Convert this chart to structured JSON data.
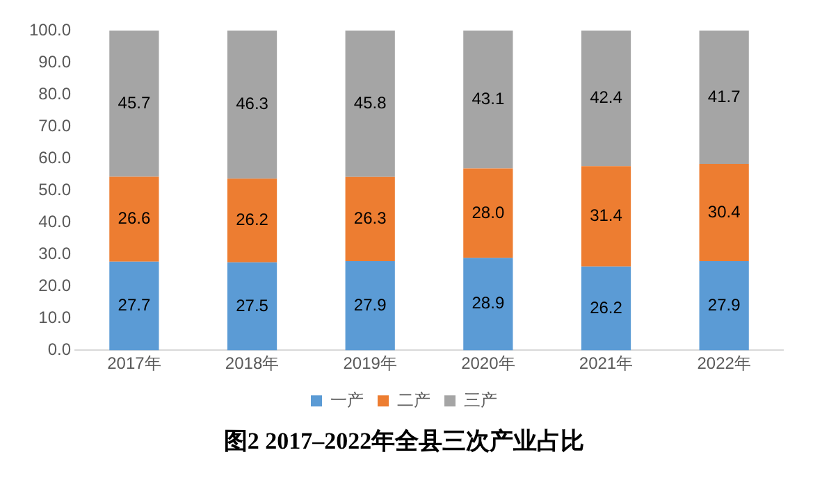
{
  "chart_data": {
    "type": "bar",
    "title": "图2 2017–2022年全县三次产业占比",
    "categories": [
      "2017年",
      "2018年",
      "2019年",
      "2020年",
      "2021年",
      "2022年"
    ],
    "stacked": true,
    "legend": "bottom",
    "grid": false,
    "series": [
      {
        "name": "一产",
        "color": "#5b9bd5",
        "values": [
          27.7,
          27.5,
          27.9,
          28.9,
          26.2,
          27.9
        ],
        "value_labels": [
          "27.7",
          "27.5",
          "27.9",
          "28.9",
          "26.2",
          "27.9"
        ]
      },
      {
        "name": "二产",
        "color": "#ed7d31",
        "values": [
          26.6,
          26.2,
          26.3,
          28.0,
          31.4,
          30.4
        ],
        "value_labels": [
          "26.6",
          "26.2",
          "26.3",
          "28.0",
          "31.4",
          "30.4"
        ]
      },
      {
        "name": "三产",
        "color": "#a5a5a5",
        "values": [
          45.7,
          46.3,
          45.8,
          43.1,
          42.4,
          41.7
        ],
        "value_labels": [
          "45.7",
          "46.3",
          "45.8",
          "43.1",
          "42.4",
          "41.7"
        ]
      }
    ],
    "ylim": [
      0,
      100
    ],
    "yticks": [
      {
        "value": 0,
        "label": "0.0"
      },
      {
        "value": 10,
        "label": "10.0"
      },
      {
        "value": 20,
        "label": "20.0"
      },
      {
        "value": 30,
        "label": "30.0"
      },
      {
        "value": 40,
        "label": "40.0"
      },
      {
        "value": 50,
        "label": "50.0"
      },
      {
        "value": 60,
        "label": "60.0"
      },
      {
        "value": 70,
        "label": "70.0"
      },
      {
        "value": 80,
        "label": "80.0"
      },
      {
        "value": 90,
        "label": "90.0"
      },
      {
        "value": 100,
        "label": "100.0"
      }
    ]
  }
}
